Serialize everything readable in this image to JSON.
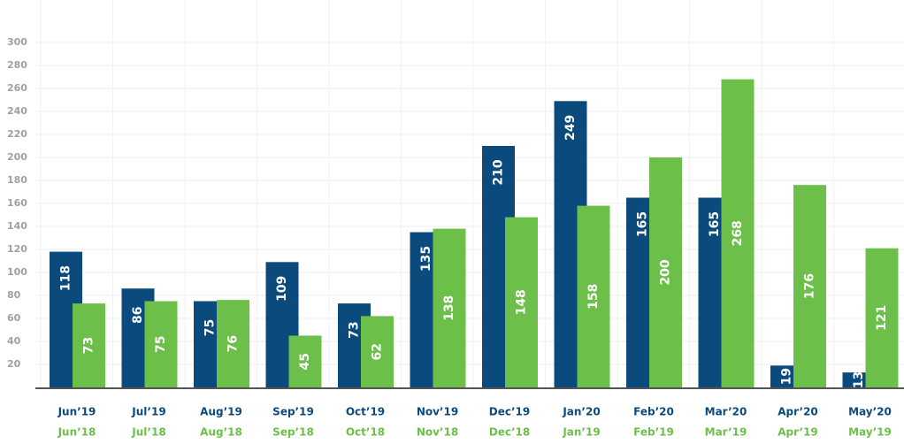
{
  "chart_data": {
    "type": "bar",
    "categories": [
      "Jun’19",
      "Jul’19",
      "Aug’19",
      "Sep’19",
      "Oct’19",
      "Nov’19",
      "Dec’19",
      "Jan’20",
      "Feb’20",
      "Mar’20",
      "Apr’20",
      "May’20"
    ],
    "categories_prior": [
      "Jun’18",
      "Jul’18",
      "Aug’18",
      "Sep’18",
      "Oct’18",
      "Nov’18",
      "Dec’18",
      "Jan’19",
      "Feb’19",
      "Mar’19",
      "Apr’19",
      "May’19"
    ],
    "series": [
      {
        "color": "#0b4a7d",
        "values": [
          118,
          86,
          75,
          109,
          73,
          135,
          210,
          249,
          165,
          165,
          19,
          13
        ]
      },
      {
        "color": "#6cc04a",
        "values": [
          73,
          75,
          76,
          45,
          62,
          138,
          148,
          158,
          200,
          268,
          176,
          121
        ]
      }
    ],
    "ylim": [
      0,
      300
    ],
    "yticks": [
      20,
      40,
      60,
      80,
      100,
      120,
      140,
      160,
      180,
      200,
      220,
      240,
      260,
      280,
      300
    ],
    "grid": true
  }
}
